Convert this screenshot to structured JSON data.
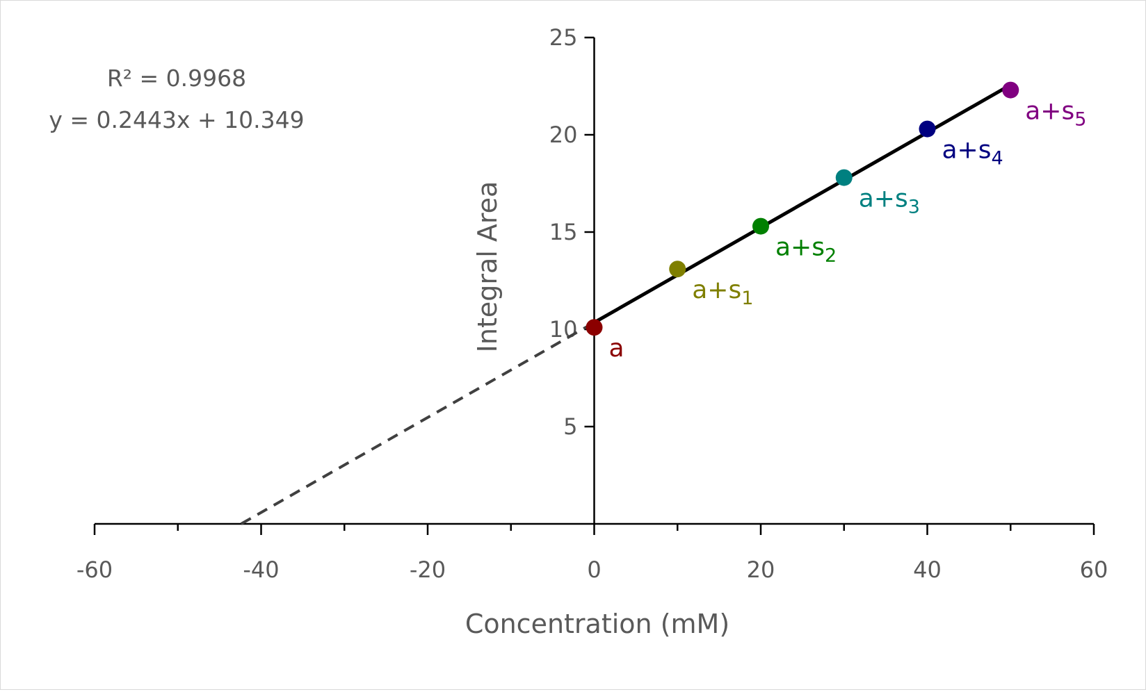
{
  "chart_data": {
    "type": "scatter",
    "xlabel": "Concentration (mM)",
    "ylabel": "Integral Area",
    "xlim": [
      -60,
      60
    ],
    "ylim": [
      0,
      25
    ],
    "x_ticks": [
      -60,
      -40,
      -20,
      0,
      20,
      40,
      60
    ],
    "y_ticks": [
      5,
      10,
      15,
      20,
      25
    ],
    "annotations": {
      "r_squared": "R² = 0.9968",
      "equation": "y = 0.2443x + 10.349"
    },
    "trendline": {
      "slope": 0.2443,
      "intercept": 10.349,
      "extrapolate_to_x": -42.4
    },
    "grid": false,
    "points": [
      {
        "x": 0,
        "y": 10.1,
        "label": "a",
        "sub": "",
        "color": "#8b0000"
      },
      {
        "x": 10,
        "y": 13.1,
        "label": "a+s",
        "sub": "1",
        "color": "#7f7f00"
      },
      {
        "x": 20,
        "y": 15.3,
        "label": "a+s",
        "sub": "2",
        "color": "#008000"
      },
      {
        "x": 30,
        "y": 17.8,
        "label": "a+s",
        "sub": "3",
        "color": "#008080"
      },
      {
        "x": 40,
        "y": 20.3,
        "label": "a+s",
        "sub": "4",
        "color": "#000080"
      },
      {
        "x": 50,
        "y": 22.3,
        "label": "a+s",
        "sub": "5",
        "color": "#800080"
      }
    ]
  }
}
